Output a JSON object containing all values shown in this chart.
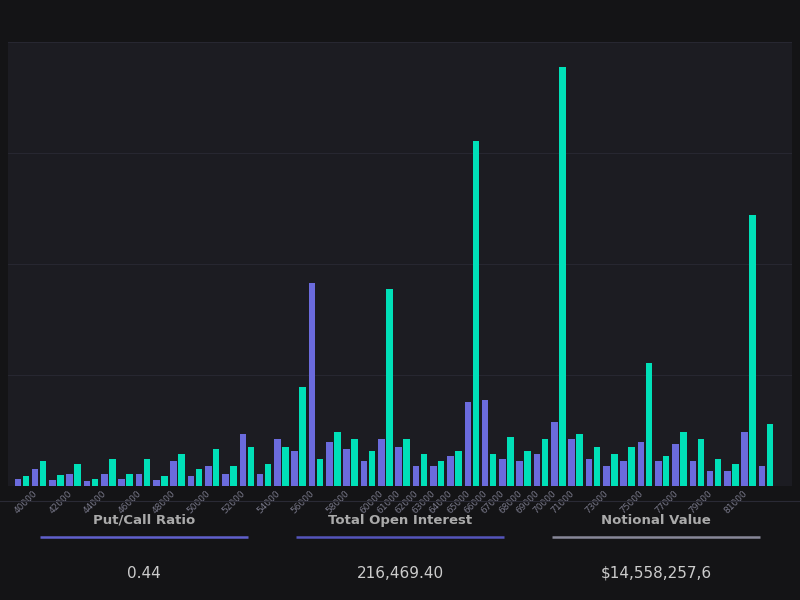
{
  "bg_color": "#141416",
  "chart_bg": "#1c1c22",
  "grid_color": "#2a2a35",
  "call_color": "#00e0b8",
  "put_color": "#6b6bdd",
  "label_color": "#777788",
  "value_color": "#cccccc",
  "stat_label_color": "#aaaaaa",
  "put_call_ratio": "0.44",
  "total_oi": "216,469.40",
  "notional_value": "$14,558,257,6",
  "strikes": [
    39000,
    40000,
    41000,
    42000,
    43000,
    44000,
    45000,
    46000,
    47000,
    48000,
    49000,
    50000,
    51000,
    52000,
    53000,
    54000,
    55000,
    56000,
    57000,
    58000,
    59000,
    60000,
    61000,
    62000,
    63000,
    64000,
    65000,
    66000,
    67000,
    68000,
    69000,
    70000,
    71000,
    72000,
    73000,
    74000,
    75000,
    76000,
    77000,
    78000,
    79000,
    80000,
    81000,
    82000
  ],
  "calls": [
    80,
    200,
    90,
    180,
    60,
    220,
    100,
    220,
    80,
    260,
    140,
    300,
    160,
    320,
    180,
    320,
    800,
    220,
    440,
    380,
    280,
    1600,
    380,
    260,
    200,
    280,
    2800,
    260,
    400,
    280,
    380,
    3400,
    420,
    320,
    260,
    320,
    1000,
    240,
    440,
    380,
    220,
    180,
    2200,
    500
  ],
  "puts": [
    60,
    140,
    50,
    100,
    40,
    100,
    60,
    100,
    50,
    200,
    80,
    160,
    100,
    420,
    100,
    380,
    280,
    1650,
    360,
    300,
    200,
    380,
    320,
    160,
    160,
    240,
    680,
    700,
    220,
    200,
    260,
    520,
    380,
    220,
    160,
    200,
    360,
    200,
    340,
    200,
    120,
    120,
    440,
    160
  ],
  "tick_labels": [
    "40000",
    "42000",
    "44000",
    "46000",
    "48000",
    "50000",
    "52000",
    "54000",
    "56000",
    "58000",
    "60000",
    "61000",
    "62000",
    "63000",
    "64000",
    "65000",
    "66000",
    "67000",
    "68000",
    "69000",
    "70000",
    "71000",
    "73000",
    "75000",
    "77000",
    "79000",
    "81000"
  ],
  "tick_positions": [
    40000,
    42000,
    44000,
    46000,
    48000,
    50000,
    52000,
    54000,
    56000,
    58000,
    60000,
    61000,
    62000,
    63000,
    64000,
    65000,
    66000,
    67000,
    68000,
    69000,
    70000,
    71000,
    73000,
    75000,
    77000,
    79000,
    81000
  ],
  "ymax": 3600,
  "xmin": 38200,
  "xmax": 83500
}
